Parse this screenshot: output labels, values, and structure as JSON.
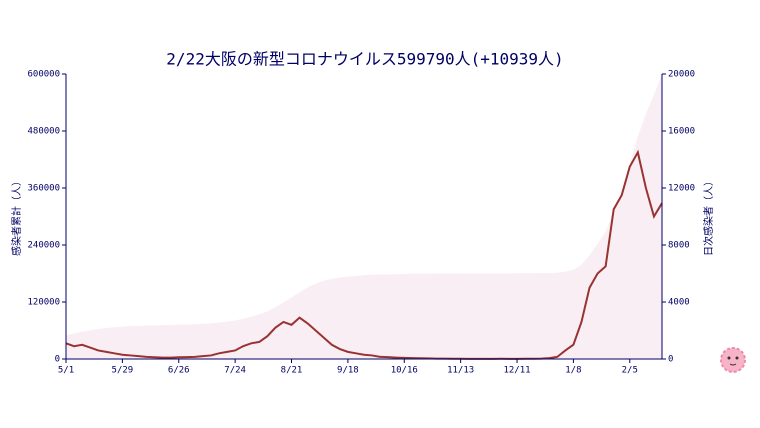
{
  "chart_data": {
    "type": "line",
    "title": "2/22大阪の新型コロナウイルス599790人(+10939人)",
    "y_label": "感染者累計（人）",
    "y2_label": "日次感染者（人）",
    "categories": [
      "5/1",
      null,
      null,
      null,
      null,
      null,
      null,
      "5/29",
      null,
      null,
      null,
      null,
      null,
      null,
      "6/26",
      null,
      null,
      null,
      null,
      null,
      null,
      "7/24",
      null,
      null,
      null,
      null,
      null,
      null,
      "8/21",
      null,
      null,
      null,
      null,
      null,
      null,
      "9/18",
      null,
      null,
      null,
      null,
      null,
      null,
      "10/16",
      null,
      null,
      null,
      null,
      null,
      null,
      "11/13",
      null,
      null,
      null,
      null,
      null,
      null,
      "12/11",
      null,
      null,
      null,
      null,
      null,
      null,
      "1/8",
      null,
      null,
      null,
      null,
      null,
      null,
      "2/5",
      null,
      null,
      null,
      null
    ],
    "series": [
      {
        "name": "感染者累計",
        "type": "area",
        "color": "#f9eef3",
        "axis": "y",
        "values": [
          50000,
          53600,
          57600,
          60800,
          63200,
          65200,
          66800,
          68000,
          69000,
          69800,
          70400,
          70880,
          71280,
          71680,
          72160,
          72680,
          73280,
          74080,
          75080,
          76680,
          78680,
          81080,
          84680,
          89080,
          93880,
          100280,
          109080,
          119480,
          129080,
          140680,
          150680,
          158680,
          164680,
          168680,
          171480,
          173480,
          175080,
          176280,
          177280,
          177880,
          178400,
          178800,
          179120,
          179360,
          179560,
          179720,
          179840,
          179940,
          180020,
          180080,
          180130,
          180170,
          180210,
          180250,
          180310,
          180360,
          180400,
          180460,
          180540,
          180660,
          180900,
          181500,
          183900,
          187900,
          198300,
          218300,
          242300,
          268300,
          310300,
          356300,
          410300,
          468300,
          516300,
          556300,
          599790
        ]
      },
      {
        "name": "日次感染者",
        "type": "line",
        "color": "#993333",
        "axis": "y2",
        "values": [
          1100,
          900,
          1000,
          800,
          600,
          500,
          400,
          300,
          250,
          200,
          150,
          120,
          100,
          100,
          120,
          130,
          150,
          200,
          250,
          400,
          500,
          600,
          900,
          1100,
          1200,
          1600,
          2200,
          2600,
          2400,
          2900,
          2500,
          2000,
          1500,
          1000,
          700,
          500,
          400,
          300,
          250,
          150,
          130,
          100,
          80,
          60,
          50,
          40,
          30,
          25,
          20,
          15,
          12,
          10,
          10,
          10,
          15,
          12,
          10,
          15,
          20,
          30,
          60,
          150,
          600,
          1000,
          2600,
          5000,
          6000,
          6500,
          10500,
          11500,
          13500,
          14500,
          12000,
          10000,
          10939
        ]
      }
    ],
    "ylim": [
      0,
      600000
    ],
    "yticks": [
      0,
      120000,
      240000,
      360000,
      480000,
      600000
    ],
    "y2lim": [
      0,
      20000
    ],
    "y2ticks": [
      0,
      4000,
      8000,
      12000,
      16000,
      20000
    ],
    "axis_color": "#000066"
  }
}
